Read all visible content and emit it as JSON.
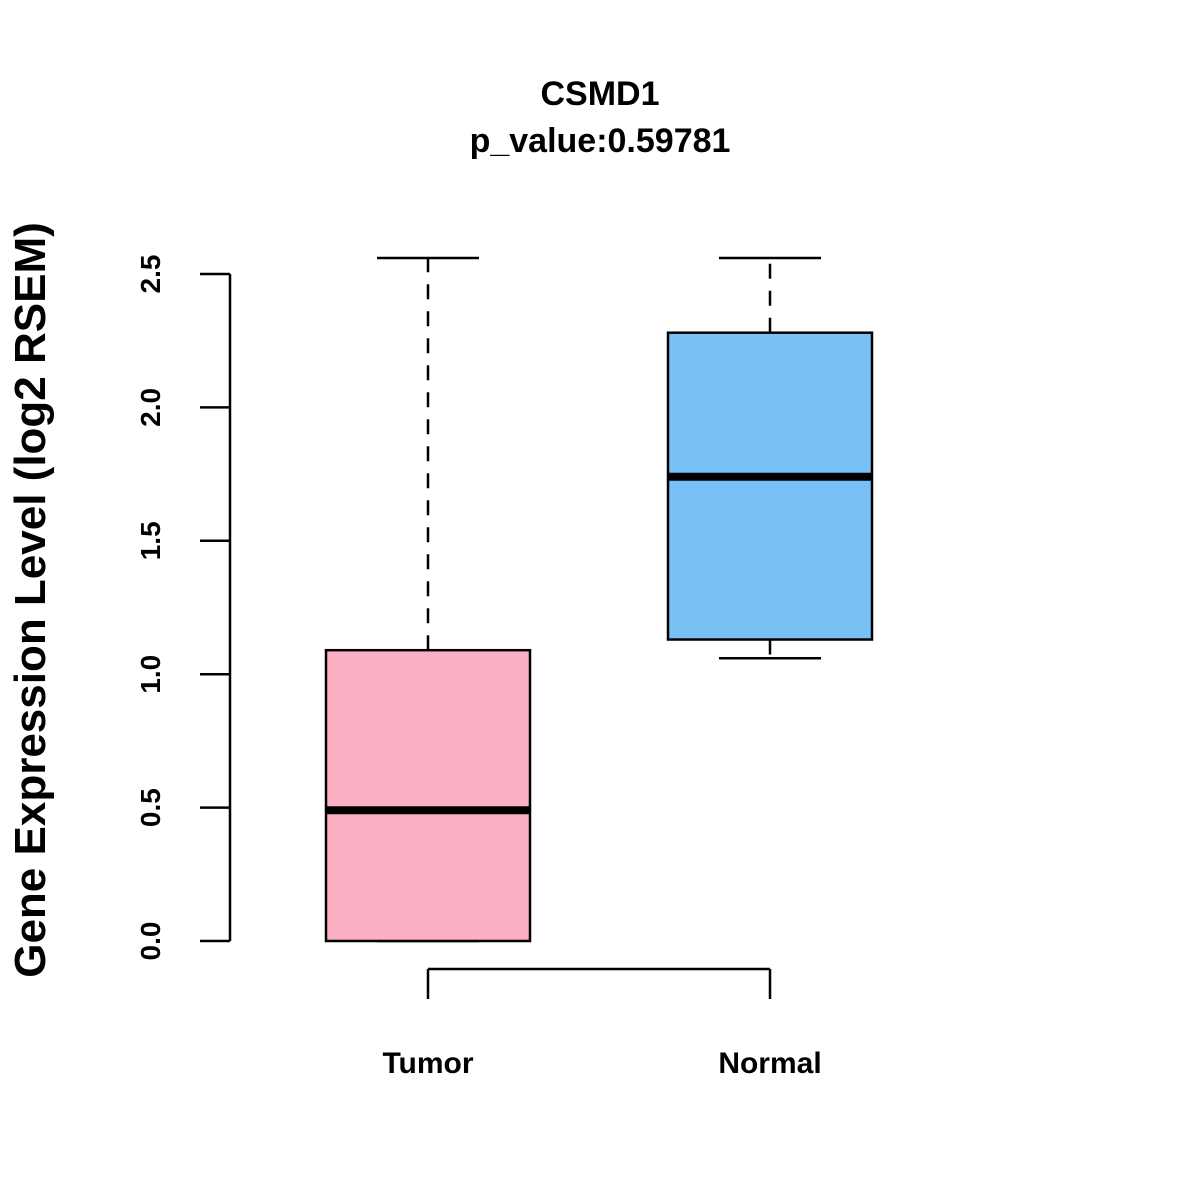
{
  "chart_data": {
    "type": "boxplot",
    "title": "CSMD1",
    "subtitle": "p_value:0.59781",
    "xlabel": "",
    "ylabel": "Gene Expression Level (log2 RSEM)",
    "ylim": [
      0,
      2.5
    ],
    "yticks": [
      0.0,
      0.5,
      1.0,
      1.5,
      2.0,
      2.5
    ],
    "ytick_labels": [
      "0.0",
      "0.5",
      "1.0",
      "1.5",
      "2.0",
      "2.5"
    ],
    "grid": false,
    "series": [
      {
        "name": "Tumor",
        "color": "#FBB0C3",
        "whisker_low": 0.0,
        "q1": 0.0,
        "median": 0.49,
        "q3": 1.09,
        "whisker_high": 2.56
      },
      {
        "name": "Normal",
        "color": "#77C1F7",
        "whisker_low": 1.06,
        "q1": 1.13,
        "median": 1.74,
        "q3": 2.28,
        "whisker_high": 2.56
      }
    ]
  }
}
